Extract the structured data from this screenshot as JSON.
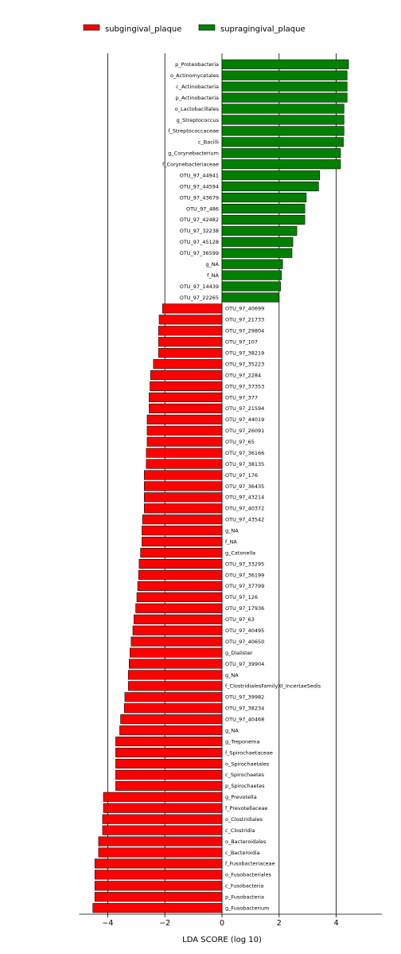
{
  "chart_data": {
    "type": "bar",
    "orientation": "horizontal",
    "xlabel": "LDA SCORE (log 10)",
    "xlim": [
      -5,
      5.6
    ],
    "xticks": [
      -4,
      -2,
      0,
      2,
      4
    ],
    "grid": "vertical lines at major x ticks",
    "legend_placement": "top-center",
    "series": [
      {
        "name": "subgingival_plaque",
        "color": "#ff0000"
      },
      {
        "name": "supragingival_plaque",
        "color": "#008000"
      }
    ],
    "bars": [
      {
        "label": "p_Proteobacteria",
        "value": 4.43,
        "group": "supragingival_plaque"
      },
      {
        "label": "o_Actinomycetales",
        "value": 4.38,
        "group": "supragingival_plaque"
      },
      {
        "label": "c_Actinobacteria",
        "value": 4.38,
        "group": "supragingival_plaque"
      },
      {
        "label": "p_Actinobacteria",
        "value": 4.38,
        "group": "supragingival_plaque"
      },
      {
        "label": "o_Lactobacillales",
        "value": 4.27,
        "group": "supragingival_plaque"
      },
      {
        "label": "g_Streptococcus",
        "value": 4.27,
        "group": "supragingival_plaque"
      },
      {
        "label": "f_Streptococcaceae",
        "value": 4.27,
        "group": "supragingival_plaque"
      },
      {
        "label": "c_Bacilli",
        "value": 4.25,
        "group": "supragingival_plaque"
      },
      {
        "label": "g_Corynebacterium",
        "value": 4.15,
        "group": "supragingival_plaque"
      },
      {
        "label": "f_Corynebacteriaceae",
        "value": 4.15,
        "group": "supragingival_plaque"
      },
      {
        "label": "OTU_97_44941",
        "value": 3.42,
        "group": "supragingival_plaque"
      },
      {
        "label": "OTU_97_44594",
        "value": 3.38,
        "group": "supragingival_plaque"
      },
      {
        "label": "OTU_97_43679",
        "value": 2.95,
        "group": "supragingival_plaque"
      },
      {
        "label": "OTU_97_486",
        "value": 2.9,
        "group": "supragingival_plaque"
      },
      {
        "label": "OTU_97_42482",
        "value": 2.9,
        "group": "supragingival_plaque"
      },
      {
        "label": "OTU_97_32238",
        "value": 2.62,
        "group": "supragingival_plaque"
      },
      {
        "label": "OTU_97_45128",
        "value": 2.48,
        "group": "supragingival_plaque"
      },
      {
        "label": "OTU_97_36599",
        "value": 2.45,
        "group": "supragingival_plaque"
      },
      {
        "label": "g_NA",
        "value": 2.12,
        "group": "supragingival_plaque"
      },
      {
        "label": "f_NA",
        "value": 2.08,
        "group": "supragingival_plaque"
      },
      {
        "label": "OTU_97_14439",
        "value": 2.05,
        "group": "supragingival_plaque"
      },
      {
        "label": "OTU_97_22265",
        "value": 2.0,
        "group": "supragingival_plaque"
      },
      {
        "label": "OTU_97_40699",
        "value": -2.08,
        "group": "subgingival_plaque"
      },
      {
        "label": "OTU_97_21733",
        "value": -2.2,
        "group": "subgingival_plaque"
      },
      {
        "label": "OTU_97_29804",
        "value": -2.22,
        "group": "subgingival_plaque"
      },
      {
        "label": "OTU_97_107",
        "value": -2.22,
        "group": "subgingival_plaque"
      },
      {
        "label": "OTU_97_38219",
        "value": -2.22,
        "group": "subgingival_plaque"
      },
      {
        "label": "OTU_97_35223",
        "value": -2.4,
        "group": "subgingival_plaque"
      },
      {
        "label": "OTU_97_2284",
        "value": -2.5,
        "group": "subgingival_plaque"
      },
      {
        "label": "OTU_97_37353",
        "value": -2.52,
        "group": "subgingival_plaque"
      },
      {
        "label": "OTU_97_377",
        "value": -2.55,
        "group": "subgingival_plaque"
      },
      {
        "label": "OTU_97_21594",
        "value": -2.55,
        "group": "subgingival_plaque"
      },
      {
        "label": "OTU_97_44019",
        "value": -2.62,
        "group": "subgingival_plaque"
      },
      {
        "label": "OTU_97_26091",
        "value": -2.62,
        "group": "subgingival_plaque"
      },
      {
        "label": "OTU_97_65",
        "value": -2.62,
        "group": "subgingival_plaque"
      },
      {
        "label": "OTU_97_36166",
        "value": -2.65,
        "group": "subgingival_plaque"
      },
      {
        "label": "OTU_97_38135",
        "value": -2.65,
        "group": "subgingival_plaque"
      },
      {
        "label": "OTU_97_176",
        "value": -2.72,
        "group": "subgingival_plaque"
      },
      {
        "label": "OTU_97_36435",
        "value": -2.72,
        "group": "subgingival_plaque"
      },
      {
        "label": "OTU_97_43214",
        "value": -2.72,
        "group": "subgingival_plaque"
      },
      {
        "label": "OTU_97_40372",
        "value": -2.72,
        "group": "subgingival_plaque"
      },
      {
        "label": "OTU_97_43542",
        "value": -2.78,
        "group": "subgingival_plaque"
      },
      {
        "label": "g_NA",
        "value": -2.8,
        "group": "subgingival_plaque"
      },
      {
        "label": "f_NA",
        "value": -2.8,
        "group": "subgingival_plaque"
      },
      {
        "label": "g_Catonella",
        "value": -2.85,
        "group": "subgingival_plaque"
      },
      {
        "label": "OTU_97_33295",
        "value": -2.9,
        "group": "subgingival_plaque"
      },
      {
        "label": "OTU_97_36199",
        "value": -2.92,
        "group": "subgingival_plaque"
      },
      {
        "label": "OTU_97_37799",
        "value": -2.95,
        "group": "subgingival_plaque"
      },
      {
        "label": "OTU_97_126",
        "value": -2.98,
        "group": "subgingival_plaque"
      },
      {
        "label": "OTU_97_17936",
        "value": -3.02,
        "group": "subgingival_plaque"
      },
      {
        "label": "OTU_97_63",
        "value": -3.08,
        "group": "subgingival_plaque"
      },
      {
        "label": "OTU_97_40495",
        "value": -3.12,
        "group": "subgingival_plaque"
      },
      {
        "label": "OTU_97_40650",
        "value": -3.18,
        "group": "subgingival_plaque"
      },
      {
        "label": "g_Dialister",
        "value": -3.22,
        "group": "subgingival_plaque"
      },
      {
        "label": "OTU_97_39904",
        "value": -3.25,
        "group": "subgingival_plaque"
      },
      {
        "label": "g_NA",
        "value": -3.28,
        "group": "subgingival_plaque"
      },
      {
        "label": "f_ClostridialesFamilyXI_IncertaeSedis",
        "value": -3.28,
        "group": "subgingival_plaque"
      },
      {
        "label": "OTU_97_39982",
        "value": -3.4,
        "group": "subgingival_plaque"
      },
      {
        "label": "OTU_97_38234",
        "value": -3.42,
        "group": "subgingival_plaque"
      },
      {
        "label": "OTU_97_40468",
        "value": -3.55,
        "group": "subgingival_plaque"
      },
      {
        "label": "g_NA",
        "value": -3.58,
        "group": "subgingival_plaque"
      },
      {
        "label": "g_Treponema",
        "value": -3.72,
        "group": "subgingival_plaque"
      },
      {
        "label": "f_Spirochaetaceae",
        "value": -3.72,
        "group": "subgingival_plaque"
      },
      {
        "label": "o_Spirochaetales",
        "value": -3.72,
        "group": "subgingival_plaque"
      },
      {
        "label": "c_Spirochaetes",
        "value": -3.72,
        "group": "subgingival_plaque"
      },
      {
        "label": "p_Spirochaetes",
        "value": -3.72,
        "group": "subgingival_plaque"
      },
      {
        "label": "g_Prevotella",
        "value": -4.15,
        "group": "subgingival_plaque"
      },
      {
        "label": "f_Prevotellaceae",
        "value": -4.15,
        "group": "subgingival_plaque"
      },
      {
        "label": "o_Clostridiales",
        "value": -4.18,
        "group": "subgingival_plaque"
      },
      {
        "label": "c_Clostridia",
        "value": -4.18,
        "group": "subgingival_plaque"
      },
      {
        "label": "o_Bacteroidales",
        "value": -4.32,
        "group": "subgingival_plaque"
      },
      {
        "label": "c_Bacteroidia",
        "value": -4.32,
        "group": "subgingival_plaque"
      },
      {
        "label": "f_Fusobacteriaceae",
        "value": -4.45,
        "group": "subgingival_plaque"
      },
      {
        "label": "o_Fusobacteriales",
        "value": -4.45,
        "group": "subgingival_plaque"
      },
      {
        "label": "c_Fusobacteria",
        "value": -4.45,
        "group": "subgingival_plaque"
      },
      {
        "label": "p_Fusobacteria",
        "value": -4.45,
        "group": "subgingival_plaque"
      },
      {
        "label": "g_Fusobacterium",
        "value": -4.52,
        "group": "subgingival_plaque"
      }
    ]
  }
}
